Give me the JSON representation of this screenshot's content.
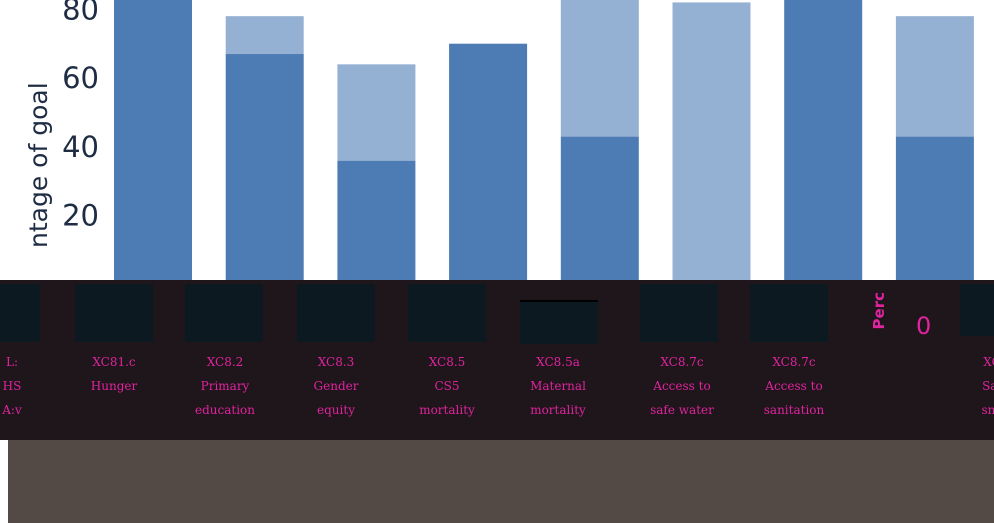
{
  "chart_data": {
    "type": "bar",
    "ylabel": "ntage of goal",
    "yticks": [
      "80",
      "60",
      "40",
      "20"
    ],
    "ylim": [
      0,
      100
    ],
    "grid": false,
    "categories": [
      "",
      "",
      "",
      "",
      "",
      "",
      "",
      ""
    ],
    "series": [
      {
        "values": [
          85,
          67,
          36,
          70,
          43,
          0,
          96,
          43
        ]
      },
      {
        "values": [
          0,
          11,
          28,
          0,
          42,
          82,
          0,
          35
        ]
      }
    ],
    "colors": [
      "#4d7bb3",
      "#94b0d3"
    ]
  },
  "strip": {
    "labels": [
      {
        "l1": "L:",
        "l2": "HS",
        "l3": "A:v"
      },
      {
        "l1": "XC81.c",
        "l2": "Hunger",
        "l3": ""
      },
      {
        "l1": "XC8.2",
        "l2": "Primary",
        "l3": "education"
      },
      {
        "l1": "XC8.3",
        "l2": "Gender",
        "l3": "equity"
      },
      {
        "l1": "XC8.5",
        "l2": "CS5",
        "l3": "mortality"
      },
      {
        "l1": "XC8.5a",
        "l2": "Maternal",
        "l3": "mortality"
      },
      {
        "l1": "XC8.7c",
        "l2": "Access to",
        "l3": "safe water"
      },
      {
        "l1": "XC8.7c",
        "l2": "Access to",
        "l3": "sanitation"
      },
      {
        "l1": "XC",
        "l2": "Saf",
        "l3": "sno"
      }
    ],
    "side_text": "Perc",
    "side_zero": "0"
  }
}
